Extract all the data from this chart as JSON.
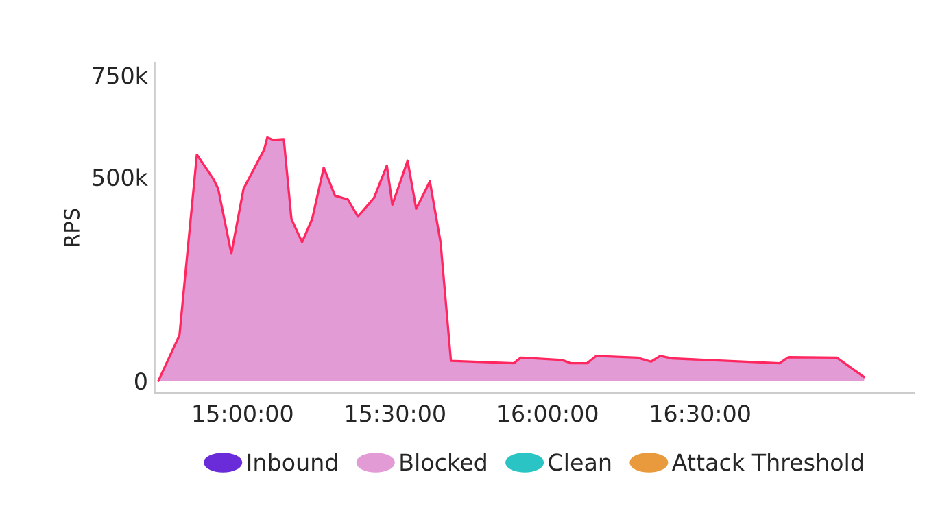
{
  "chart_data": {
    "type": "area",
    "ylabel": "RPS",
    "xlim": [
      14.712,
      17.203
    ],
    "ylim": [
      -30000,
      780000
    ],
    "xticks": [
      {
        "value": 15,
        "label": "15:00:00"
      },
      {
        "value": 15.5,
        "label": "15:30:00"
      },
      {
        "value": 16,
        "label": "16:00:00"
      },
      {
        "value": 16.5,
        "label": "16:30:00"
      }
    ],
    "yticks": [
      0,
      {
        "value": 500000,
        "label": "500k"
      },
      {
        "value": 750000,
        "label": "750k"
      }
    ],
    "grid": false,
    "legend": "bottom",
    "series": [
      {
        "name": "Inbound",
        "color": "#6a2bd9"
      },
      {
        "name": "Blocked",
        "color": "#e39bd6",
        "x": [
          14.724,
          14.793,
          14.85,
          14.905,
          14.92,
          14.963,
          15.003,
          15.071,
          15.081,
          15.1,
          15.135,
          15.16,
          15.195,
          15.228,
          15.266,
          15.303,
          15.345,
          15.378,
          15.431,
          15.473,
          15.491,
          15.541,
          15.569,
          15.614,
          15.649,
          15.683,
          15.889,
          15.912,
          16.047,
          16.077,
          16.129,
          16.159,
          16.294,
          16.339,
          16.369,
          16.407,
          16.76,
          16.79,
          16.948,
          17.038
        ],
        "values": [
          0,
          112000,
          555000,
          494000,
          471000,
          312000,
          471000,
          568000,
          597000,
          591000,
          593000,
          397000,
          340000,
          397000,
          523000,
          454000,
          445000,
          403000,
          449000,
          528000,
          432000,
          540000,
          422000,
          489000,
          340000,
          49000,
          43000,
          57000,
          51000,
          43000,
          43000,
          61000,
          57000,
          47000,
          61000,
          55000,
          43000,
          58000,
          57000,
          9000
        ]
      },
      {
        "name": "Clean",
        "color": "#2bc4c4"
      },
      {
        "name": "Attack Threshold",
        "color": "#e89a3c"
      }
    ]
  }
}
